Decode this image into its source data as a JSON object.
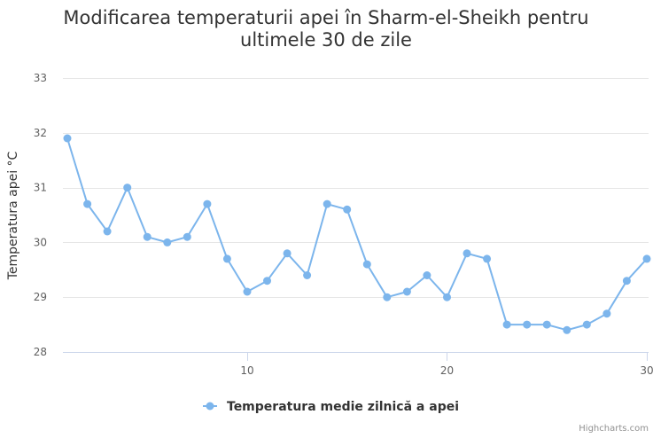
{
  "chart_data": {
    "type": "line",
    "title": "Modificarea temperaturii apei în Sharm-el-Sheikh pentru ultimele 30 de zile",
    "title_lines": [
      "Modificarea temperaturii apei în Sharm-el-Sheikh pentru",
      "ultimele 30 de zile"
    ],
    "xlabel": "",
    "ylabel": "Temperatura apei °C",
    "xlim": [
      1,
      30
    ],
    "ylim": [
      28,
      33
    ],
    "x_ticks": [
      10,
      20,
      30
    ],
    "y_ticks": [
      28,
      29,
      30,
      31,
      32,
      33
    ],
    "grid": true,
    "legend_position": "bottom-center",
    "series": [
      {
        "name": "Temperatura medie zilnică a apei",
        "color": "#7cb5ec",
        "x": [
          1,
          2,
          3,
          4,
          5,
          6,
          7,
          8,
          9,
          10,
          11,
          12,
          13,
          14,
          15,
          16,
          17,
          18,
          19,
          20,
          21,
          22,
          23,
          24,
          25,
          26,
          27,
          28,
          29,
          30
        ],
        "values": [
          31.9,
          30.7,
          30.2,
          31.0,
          30.1,
          30.0,
          30.1,
          30.7,
          29.7,
          29.1,
          29.3,
          29.8,
          29.4,
          30.7,
          30.6,
          29.6,
          29.0,
          29.1,
          29.4,
          29.0,
          29.8,
          29.7,
          28.5,
          28.5,
          28.5,
          28.4,
          28.5,
          28.7,
          29.3,
          29.7
        ]
      }
    ],
    "credits": "Highcharts.com"
  }
}
